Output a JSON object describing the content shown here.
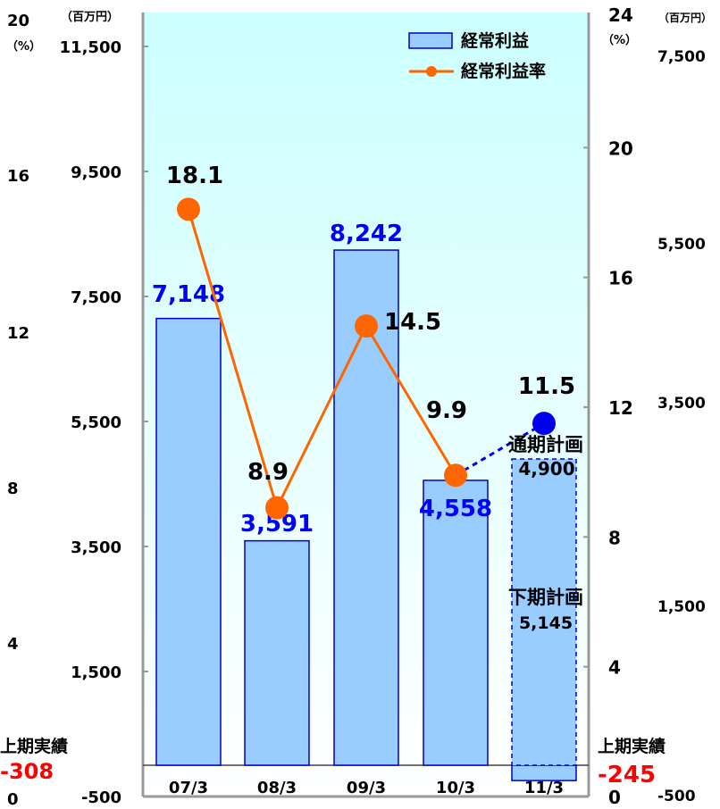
{
  "chart_data": {
    "type": "bar",
    "categories": [
      "07/3",
      "08/3",
      "09/3",
      "10/3",
      "11/3"
    ],
    "series": [
      {
        "name": "経常利益",
        "kind": "bar",
        "axis": "left-yen",
        "values": [
          7148,
          3591,
          8242,
          4558,
          4900
        ],
        "labels": [
          "7,148",
          "3,591",
          "8,242",
          "4,558",
          "4,900"
        ]
      },
      {
        "name": "経常利益率",
        "kind": "line",
        "axis": "right-pct",
        "values": [
          18.1,
          8.9,
          14.5,
          9.9,
          11.5
        ],
        "labels": [
          "18.1",
          "8.9",
          "14.5",
          "9.9",
          "11.5"
        ]
      }
    ],
    "plan_bar": {
      "first_half_actual": -245,
      "second_half_plan": 5145,
      "full_year_plan": 4900
    },
    "left_axis_yen": {
      "unit": "（百万円）",
      "ylim": [
        -500,
        11500
      ],
      "ticks": [
        "11,500",
        "9,500",
        "7,500",
        "5,500",
        "3,500",
        "1,500",
        "-500"
      ]
    },
    "left_axis_pct": {
      "unit": "（%）",
      "ylim": [
        0,
        20
      ],
      "ticks": [
        "20",
        "16",
        "12",
        "8",
        "4",
        "0"
      ]
    },
    "right_axis_pct": {
      "unit": "（%）",
      "ylim": [
        0,
        24
      ],
      "ticks": [
        "24",
        "20",
        "16",
        "12",
        "8",
        "4",
        "0"
      ]
    },
    "right_axis_yen": {
      "unit": "（百万円）",
      "ylim": [
        -500,
        7500
      ],
      "ticks": [
        "7,500",
        "5,500",
        "3,500",
        "1,500",
        "-500"
      ]
    },
    "annotations": {
      "full_year_plan": "通期計画",
      "second_half_plan": "下期計画",
      "second_half_value": "5,145",
      "first_half_left": "上期実績",
      "first_half_left_value": "-308",
      "first_half_right": "上期実績",
      "first_half_right_value": "-245"
    },
    "legend": [
      "経常利益",
      "経常利益率"
    ],
    "legend_position": "top-right",
    "colors": {
      "bar_fill": "#99ccff",
      "bar_stroke": "#0000cc",
      "line": "#ff6600",
      "marker": "#ff6600",
      "plan_marker": "#0000ee",
      "bar_label": "#0000ff",
      "negative_label": "#ff0000",
      "plot_bg_top": "#ccffff"
    }
  }
}
